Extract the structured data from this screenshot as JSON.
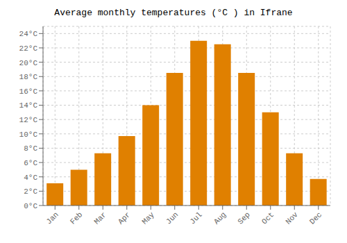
{
  "chart_data": {
    "type": "bar",
    "title": "Average monthly temperatures (°C ) in Ifrane",
    "categories": [
      "Jan",
      "Feb",
      "Mar",
      "Apr",
      "May",
      "Jun",
      "Jul",
      "Aug",
      "Sep",
      "Oct",
      "Nov",
      "Dec"
    ],
    "values": [
      3.1,
      5.0,
      7.3,
      9.7,
      14.0,
      18.5,
      23.0,
      22.5,
      18.5,
      13.0,
      7.3,
      3.7
    ],
    "color": "#E08000",
    "ylim": [
      0,
      25
    ],
    "yticks": [
      {
        "value": 0,
        "label": "0°C"
      },
      {
        "value": 2,
        "label": "2°C"
      },
      {
        "value": 4,
        "label": "4°C"
      },
      {
        "value": 6,
        "label": "6°C"
      },
      {
        "value": 8,
        "label": "8°C"
      },
      {
        "value": 10,
        "label": "10°C"
      },
      {
        "value": 12,
        "label": "12°C"
      },
      {
        "value": 14,
        "label": "14°C"
      },
      {
        "value": 16,
        "label": "16°C"
      },
      {
        "value": 18,
        "label": "18°C"
      },
      {
        "value": 20,
        "label": "20°C"
      },
      {
        "value": 22,
        "label": "22°C"
      },
      {
        "value": 24,
        "label": "24°C"
      }
    ],
    "grid": true
  }
}
